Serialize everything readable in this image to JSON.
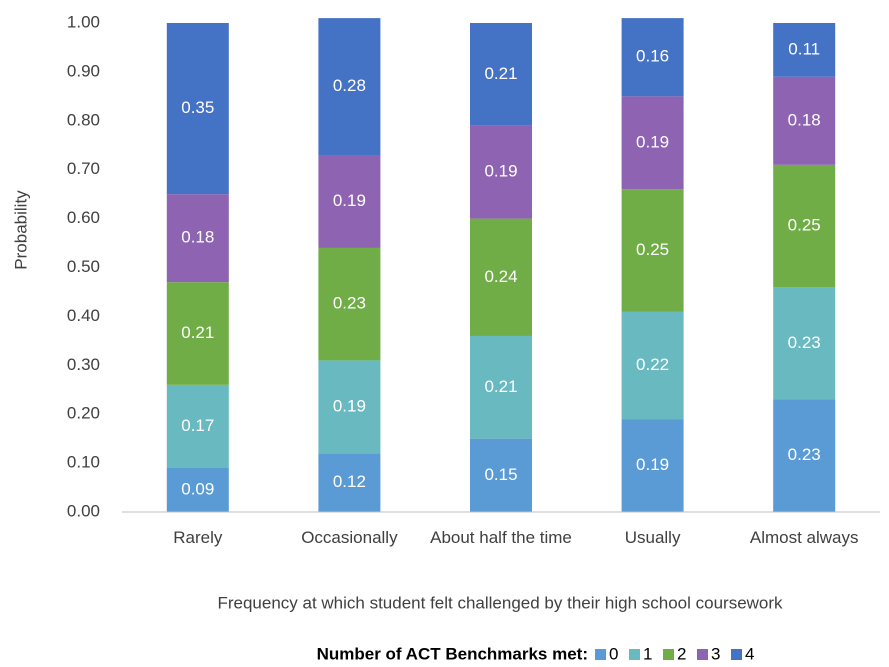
{
  "chart_data": {
    "type": "stacked_bar",
    "y_label": "Probability",
    "x_label": "Frequency at which student felt challenged by their high school coursework",
    "legend_title": "Number of ACT Benchmarks met:",
    "categories": [
      "Rarely",
      "Occasionally",
      "About half the time",
      "Usually",
      "Almost always"
    ],
    "series": [
      {
        "name": "0",
        "color": "#5b9bd5",
        "values": [
          0.09,
          0.12,
          0.15,
          0.19,
          0.23
        ]
      },
      {
        "name": "1",
        "color": "#69b9c0",
        "values": [
          0.17,
          0.19,
          0.21,
          0.22,
          0.23
        ]
      },
      {
        "name": "2",
        "color": "#70ad47",
        "values": [
          0.21,
          0.23,
          0.24,
          0.25,
          0.25
        ]
      },
      {
        "name": "3",
        "color": "#8e63b1",
        "values": [
          0.18,
          0.19,
          0.19,
          0.19,
          0.18
        ]
      },
      {
        "name": "4",
        "color": "#4472c4",
        "values": [
          0.35,
          0.28,
          0.21,
          0.16,
          0.11
        ]
      }
    ],
    "ylim": [
      0,
      1
    ],
    "yticks": [
      {
        "value": 0,
        "label": "0.00"
      },
      {
        "value": 0.1,
        "label": "0.10"
      },
      {
        "value": 0.2,
        "label": "0.20"
      },
      {
        "value": 0.3,
        "label": "0.30"
      },
      {
        "value": 0.4,
        "label": "0.40"
      },
      {
        "value": 0.5,
        "label": "0.50"
      },
      {
        "value": 0.6,
        "label": "0.60"
      },
      {
        "value": 0.7,
        "label": "0.70"
      },
      {
        "value": 0.8,
        "label": "0.80"
      },
      {
        "value": 0.9,
        "label": "0.90"
      },
      {
        "value": 1,
        "label": "1.00"
      }
    ],
    "grid": false
  }
}
